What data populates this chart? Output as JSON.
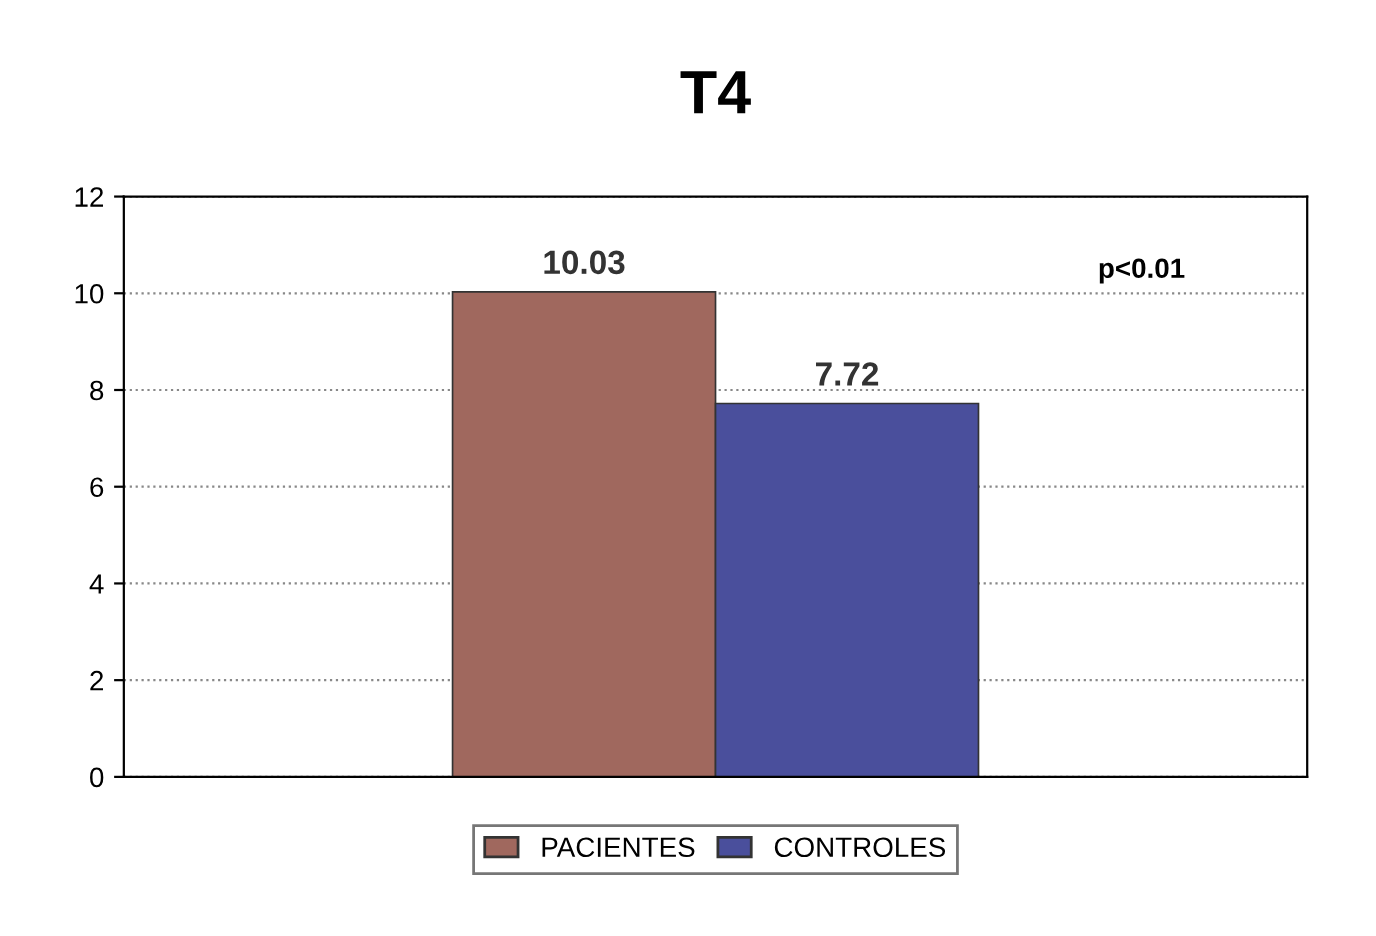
{
  "chart_data": {
    "type": "bar",
    "title": "T4",
    "categories": [
      null
    ],
    "series": [
      {
        "name": "PACIENTES",
        "color": "#a0685e",
        "values": [
          10.03
        ]
      },
      {
        "name": "CONTROLES",
        "color": "#4a4f9c",
        "values": [
          7.72
        ]
      }
    ],
    "ylim": [
      0,
      12
    ],
    "yticks": [
      0,
      2,
      4,
      6,
      8,
      10,
      12
    ],
    "grid": "y",
    "legend": "bottom",
    "data_labels": true,
    "annotations": [
      "p<0.01"
    ]
  }
}
